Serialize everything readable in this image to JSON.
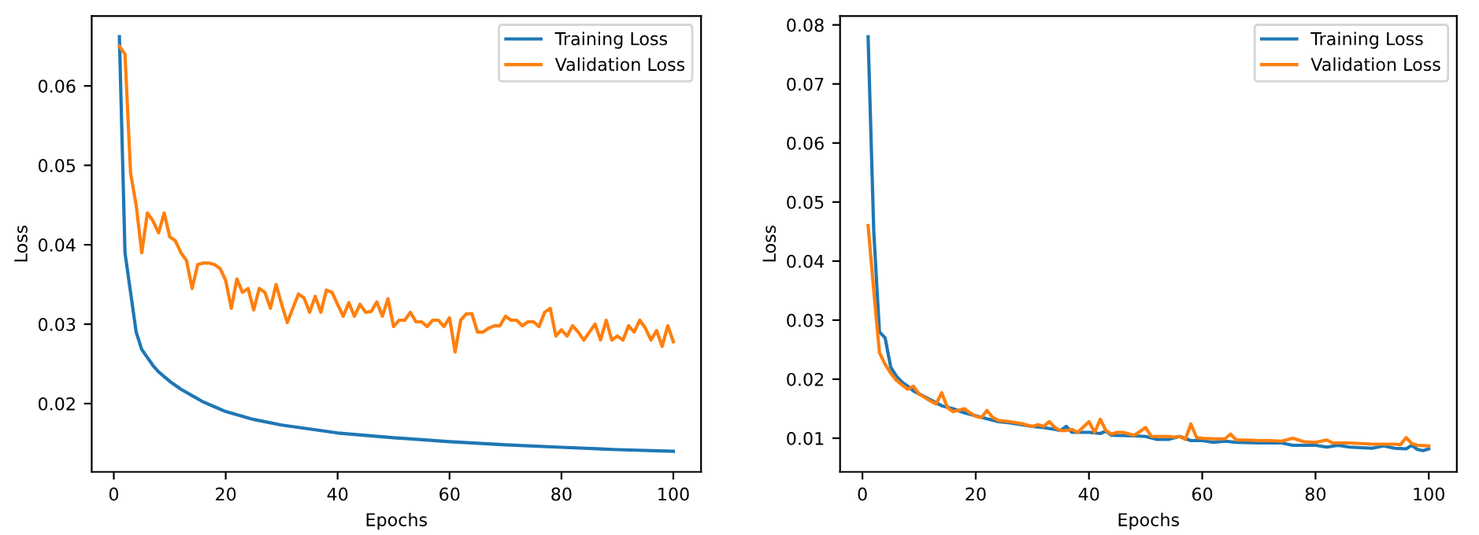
{
  "chart_data": [
    {
      "type": "line",
      "xlabel": "Epochs",
      "ylabel": "Loss",
      "legend": "top right",
      "grid": false,
      "xlim": [
        -3.95,
        104.95
      ],
      "xticks": [
        0,
        20,
        40,
        60,
        80,
        100
      ],
      "ylim": [
        0.0114,
        0.0688
      ],
      "yticks": [
        0.02,
        0.03,
        0.04,
        0.05,
        0.06
      ],
      "series": [
        {
          "name": "Training Loss",
          "color": "#1f77b4",
          "x": [
            1,
            2,
            3,
            4,
            5,
            6,
            7,
            8,
            9,
            10,
            12,
            14,
            16,
            18,
            20,
            25,
            30,
            35,
            40,
            50,
            60,
            70,
            80,
            90,
            100
          ],
          "values": [
            0.0662,
            0.039,
            0.034,
            0.029,
            0.0268,
            0.0258,
            0.0248,
            0.024,
            0.0234,
            0.0228,
            0.0218,
            0.021,
            0.0202,
            0.0196,
            0.019,
            0.018,
            0.0173,
            0.0168,
            0.0163,
            0.0157,
            0.0152,
            0.0148,
            0.0145,
            0.0142,
            0.014
          ]
        },
        {
          "name": "Validation Loss",
          "color": "#ff7f0e",
          "x": [
            1,
            2,
            3,
            4,
            5,
            6,
            7,
            8,
            9,
            10,
            11,
            12,
            13,
            14,
            15,
            16,
            17,
            18,
            19,
            20,
            21,
            22,
            23,
            24,
            25,
            26,
            27,
            28,
            29,
            30,
            31,
            32,
            33,
            34,
            35,
            36,
            37,
            38,
            39,
            40,
            41,
            42,
            43,
            44,
            45,
            46,
            47,
            48,
            49,
            50,
            51,
            52,
            53,
            54,
            55,
            56,
            57,
            58,
            59,
            60,
            61,
            62,
            63,
            64,
            65,
            66,
            67,
            68,
            69,
            70,
            71,
            72,
            73,
            74,
            75,
            76,
            77,
            78,
            79,
            80,
            81,
            82,
            83,
            84,
            85,
            86,
            87,
            88,
            89,
            90,
            91,
            92,
            93,
            94,
            95,
            96,
            97,
            98,
            99,
            100
          ],
          "values": [
            0.065,
            0.064,
            0.049,
            0.045,
            0.039,
            0.044,
            0.043,
            0.0415,
            0.044,
            0.041,
            0.0405,
            0.039,
            0.038,
            0.0345,
            0.0375,
            0.0377,
            0.0377,
            0.0375,
            0.037,
            0.0355,
            0.032,
            0.0357,
            0.034,
            0.0345,
            0.0318,
            0.0345,
            0.034,
            0.032,
            0.035,
            0.0325,
            0.0302,
            0.032,
            0.0338,
            0.0333,
            0.0315,
            0.0335,
            0.0315,
            0.0343,
            0.034,
            0.0325,
            0.031,
            0.0327,
            0.031,
            0.0325,
            0.0315,
            0.0316,
            0.0328,
            0.031,
            0.0332,
            0.0297,
            0.0305,
            0.0305,
            0.0315,
            0.0303,
            0.0303,
            0.0297,
            0.0305,
            0.0305,
            0.0297,
            0.0308,
            0.0265,
            0.0305,
            0.0313,
            0.0313,
            0.029,
            0.029,
            0.0295,
            0.0298,
            0.0298,
            0.031,
            0.0305,
            0.0305,
            0.0298,
            0.0303,
            0.0303,
            0.0297,
            0.0315,
            0.032,
            0.0285,
            0.0293,
            0.0285,
            0.0298,
            0.029,
            0.028,
            0.029,
            0.03,
            0.028,
            0.0305,
            0.028,
            0.0285,
            0.028,
            0.0298,
            0.029,
            0.0305,
            0.0295,
            0.028,
            0.0292,
            0.0272,
            0.0298,
            0.0278
          ]
        }
      ]
    },
    {
      "type": "line",
      "xlabel": "Epochs",
      "ylabel": "Loss",
      "legend": "top right",
      "grid": false,
      "xlim": [
        -3.95,
        104.95
      ],
      "xticks": [
        0,
        20,
        40,
        60,
        80,
        100
      ],
      "ylim": [
        0.0043,
        0.0815
      ],
      "yticks": [
        0.01,
        0.02,
        0.03,
        0.04,
        0.05,
        0.06,
        0.07,
        0.08
      ],
      "series": [
        {
          "name": "Training Loss",
          "color": "#1f77b4",
          "x": [
            1,
            2,
            3,
            4,
            5,
            6,
            7,
            8,
            9,
            10,
            12,
            14,
            16,
            18,
            20,
            22,
            24,
            26,
            28,
            30,
            32,
            34,
            35,
            36,
            37,
            40,
            42,
            43,
            44,
            48,
            50,
            52,
            54,
            56,
            58,
            60,
            62,
            64,
            66,
            70,
            74,
            76,
            80,
            82,
            84,
            86,
            88,
            90,
            92,
            94,
            96,
            97,
            98,
            99,
            100
          ],
          "values": [
            0.078,
            0.045,
            0.028,
            0.027,
            0.022,
            0.0205,
            0.0195,
            0.0188,
            0.018,
            0.0175,
            0.0165,
            0.0155,
            0.015,
            0.0143,
            0.0138,
            0.0133,
            0.0128,
            0.0126,
            0.0123,
            0.012,
            0.0118,
            0.0115,
            0.0113,
            0.012,
            0.011,
            0.011,
            0.0108,
            0.0112,
            0.0105,
            0.0104,
            0.0103,
            0.0098,
            0.0098,
            0.0103,
            0.0096,
            0.0096,
            0.0093,
            0.0095,
            0.0093,
            0.0092,
            0.0092,
            0.0088,
            0.0088,
            0.0085,
            0.0088,
            0.0085,
            0.0084,
            0.0083,
            0.0087,
            0.0083,
            0.0082,
            0.0088,
            0.0081,
            0.0079,
            0.0082
          ]
        },
        {
          "name": "Validation Loss",
          "color": "#ff7f0e",
          "x": [
            1,
            2,
            3,
            4,
            5,
            6,
            7,
            8,
            9,
            10,
            12,
            13,
            14,
            15,
            16,
            18,
            19,
            20,
            21,
            22,
            23,
            24,
            26,
            28,
            30,
            31,
            32,
            33,
            34,
            35,
            36,
            37,
            38,
            40,
            41,
            42,
            43,
            44,
            45,
            46,
            48,
            50,
            51,
            52,
            54,
            55,
            56,
            57,
            58,
            59,
            60,
            62,
            64,
            65,
            66,
            68,
            70,
            72,
            74,
            76,
            78,
            80,
            82,
            83,
            86,
            88,
            90,
            92,
            94,
            95,
            96,
            97,
            98,
            100
          ],
          "values": [
            0.046,
            0.035,
            0.0245,
            0.0225,
            0.021,
            0.0198,
            0.019,
            0.0183,
            0.0188,
            0.0175,
            0.0163,
            0.0158,
            0.0177,
            0.0152,
            0.0145,
            0.015,
            0.0143,
            0.0137,
            0.0135,
            0.0147,
            0.0135,
            0.013,
            0.0128,
            0.0125,
            0.012,
            0.0123,
            0.012,
            0.0128,
            0.0118,
            0.0113,
            0.0113,
            0.0115,
            0.011,
            0.0128,
            0.011,
            0.0132,
            0.0113,
            0.0107,
            0.011,
            0.011,
            0.0105,
            0.0118,
            0.0103,
            0.0103,
            0.0103,
            0.0102,
            0.0103,
            0.0098,
            0.0124,
            0.0101,
            0.01,
            0.0099,
            0.0099,
            0.0107,
            0.0097,
            0.0097,
            0.0096,
            0.0096,
            0.0095,
            0.01,
            0.0094,
            0.0093,
            0.0097,
            0.0092,
            0.0092,
            0.0091,
            0.009,
            0.009,
            0.009,
            0.0089,
            0.0101,
            0.0091,
            0.0088,
            0.0087
          ]
        }
      ]
    }
  ]
}
